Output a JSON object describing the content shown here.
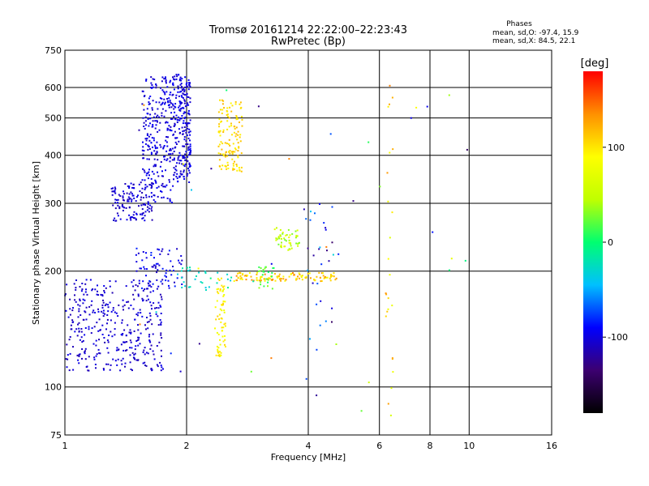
{
  "header": {
    "title": "Tromsø 20161214 22:22:00–22:23:43",
    "subtitle": "RwPretec (Bp)"
  },
  "stats": {
    "label": "Phases",
    "line_o": "mean, sd,O: -97.4, 15.9",
    "line_x": "mean, sd,X:  84.5, 22.1"
  },
  "colorbar": {
    "unit": "[deg]",
    "ticks": [
      {
        "value": 100,
        "label": "100"
      },
      {
        "value": 0,
        "label": "0"
      },
      {
        "value": -100,
        "label": "-100"
      }
    ],
    "range": [
      -180,
      180
    ]
  },
  "colors": {
    "phase_scale": [
      "#000000",
      "#3c0070",
      "#0000ff",
      "#00c0ff",
      "#00ff70",
      "#c0ff00",
      "#ffff00",
      "#ff9000",
      "#ff0000"
    ]
  },
  "chart_data": {
    "type": "scatter",
    "xlabel": "Frequency [MHz]",
    "ylabel": "Stationary phase Virtual Height [km]",
    "xscale": "log",
    "yscale": "log",
    "xlim": [
      1,
      16
    ],
    "ylim": [
      75,
      750
    ],
    "grid": true,
    "xticks": [
      {
        "value": 1,
        "label": "1"
      },
      {
        "value": 2,
        "label": "2"
      },
      {
        "value": 4,
        "label": "4"
      },
      {
        "value": 6,
        "label": "6"
      },
      {
        "value": 8,
        "label": "8"
      },
      {
        "value": 10,
        "label": "10"
      },
      {
        "value": 16,
        "label": "16"
      }
    ],
    "yticks": [
      {
        "value": 75,
        "label": "75"
      },
      {
        "value": 100,
        "label": "100"
      },
      {
        "value": 200,
        "label": "200"
      },
      {
        "value": 300,
        "label": "300"
      },
      {
        "value": 400,
        "label": "400"
      },
      {
        "value": 500,
        "label": "500"
      },
      {
        "value": 600,
        "label": "600"
      },
      {
        "value": 750,
        "label": "750"
      }
    ],
    "clusters": [
      {
        "f": [
          1.0,
          1.75
        ],
        "h": [
          110,
          190
        ],
        "phase": [
          -115,
          -95
        ],
        "n": 380
      },
      {
        "f": [
          1.5,
          1.95
        ],
        "h": [
          180,
          230
        ],
        "phase": [
          -110,
          -80
        ],
        "n": 70
      },
      {
        "f": [
          1.3,
          1.65
        ],
        "h": [
          270,
          340
        ],
        "phase": [
          -115,
          -95
        ],
        "n": 130
      },
      {
        "f": [
          1.55,
          1.85
        ],
        "h": [
          300,
          640
        ],
        "phase": [
          -110,
          -90
        ],
        "n": 260
      },
      {
        "f": [
          1.85,
          2.05
        ],
        "h": [
          340,
          650
        ],
        "phase": [
          -110,
          -90
        ],
        "n": 240
      },
      {
        "f": [
          2.4,
          2.75
        ],
        "h": [
          360,
          560
        ],
        "phase": [
          90,
          120
        ],
        "n": 130
      },
      {
        "f": [
          2.35,
          2.5
        ],
        "h": [
          120,
          195
        ],
        "phase": [
          75,
          110
        ],
        "n": 70
      },
      {
        "f": [
          1.9,
          2.6
        ],
        "h": [
          180,
          205
        ],
        "phase": [
          -40,
          -5
        ],
        "n": 30
      },
      {
        "f": [
          2.6,
          4.7
        ],
        "h": [
          188,
          198
        ],
        "phase": [
          80,
          140
        ],
        "n": 120
      },
      {
        "f": [
          3.0,
          3.3
        ],
        "h": [
          180,
          205
        ],
        "phase": [
          0,
          40
        ],
        "n": 25
      },
      {
        "f": [
          3.3,
          3.8
        ],
        "h": [
          225,
          260
        ],
        "phase": [
          20,
          80
        ],
        "n": 50
      },
      {
        "f": [
          3.9,
          4.6
        ],
        "h": [
          95,
          300
        ],
        "phase": [
          -140,
          -40
        ],
        "n": 30
      },
      {
        "f": [
          6.2,
          6.5
        ],
        "h": [
          80,
          650
        ],
        "phase": [
          60,
          140
        ],
        "n": 25
      },
      {
        "f": [
          1.5,
          12.0
        ],
        "h": [
          80,
          650
        ],
        "phase": [
          -150,
          170
        ],
        "n": 40
      }
    ]
  }
}
